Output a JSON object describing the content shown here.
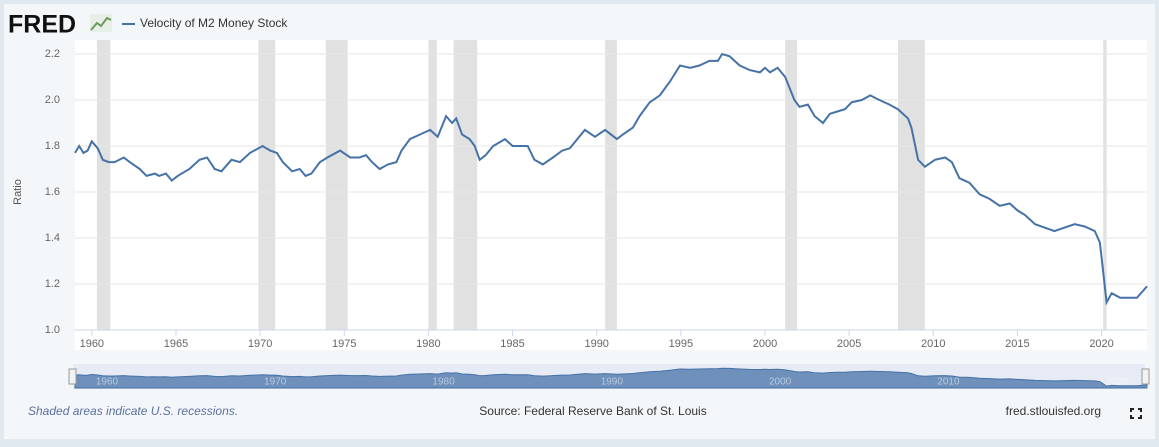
{
  "header": {
    "logo": "FRED"
  },
  "chart_data": {
    "type": "line",
    "series": [
      {
        "name": "Velocity of M2 Money Stock",
        "color": "#4572a7",
        "x": [
          1959.0,
          1959.25,
          1959.5,
          1959.75,
          1960.0,
          1960.35,
          1960.65,
          1961.0,
          1961.35,
          1961.9,
          1962.25,
          1962.85,
          1963.25,
          1963.75,
          1964.0,
          1964.4,
          1964.75,
          1965.1,
          1965.8,
          1966.4,
          1966.85,
          1967.3,
          1967.7,
          1968.3,
          1968.8,
          1969.4,
          1970.15,
          1970.6,
          1971.0,
          1971.35,
          1971.9,
          1972.35,
          1972.7,
          1973.05,
          1973.55,
          1974.0,
          1974.75,
          1975.35,
          1975.9,
          1976.3,
          1976.65,
          1977.1,
          1977.6,
          1978.1,
          1978.4,
          1978.9,
          1979.5,
          1980.1,
          1980.55,
          1981.05,
          1981.4,
          1981.65,
          1982.0,
          1982.45,
          1982.75,
          1983.05,
          1983.4,
          1983.85,
          1984.55,
          1985.0,
          1985.9,
          1986.3,
          1986.8,
          1987.4,
          1987.95,
          1988.4,
          1989.3,
          1989.9,
          1990.5,
          1991.2,
          1991.55,
          1992.15,
          1992.55,
          1993.15,
          1993.75,
          1994.35,
          1994.95,
          1995.55,
          1996.1,
          1996.7,
          1997.2,
          1997.45,
          1997.9,
          1998.5,
          1999.1,
          1999.7,
          2000.0,
          2000.3,
          2000.75,
          2001.2,
          2001.75,
          2002.05,
          2002.55,
          2002.95,
          2003.45,
          2003.85,
          2004.3,
          2004.75,
          2005.15,
          2005.75,
          2006.25,
          2006.8,
          2007.4,
          2007.9,
          2008.5,
          2008.7,
          2009.1,
          2009.5,
          2010.1,
          2010.7,
          2011.1,
          2011.55,
          2012.15,
          2012.75,
          2013.35,
          2013.95,
          2014.55,
          2015.0,
          2015.45,
          2016.05,
          2017.2,
          2018.4,
          2019.0,
          2019.6,
          2019.9,
          2020.3,
          2020.6,
          2021.1,
          2021.7,
          2022.1,
          2022.7
        ],
        "values": [
          1.77,
          1.8,
          1.77,
          1.78,
          1.82,
          1.79,
          1.74,
          1.73,
          1.73,
          1.75,
          1.73,
          1.7,
          1.67,
          1.68,
          1.67,
          1.68,
          1.65,
          1.67,
          1.7,
          1.74,
          1.75,
          1.7,
          1.69,
          1.74,
          1.73,
          1.77,
          1.8,
          1.78,
          1.77,
          1.73,
          1.69,
          1.7,
          1.67,
          1.68,
          1.73,
          1.75,
          1.78,
          1.75,
          1.75,
          1.76,
          1.73,
          1.7,
          1.72,
          1.73,
          1.78,
          1.83,
          1.85,
          1.87,
          1.84,
          1.93,
          1.9,
          1.92,
          1.85,
          1.83,
          1.8,
          1.74,
          1.76,
          1.8,
          1.83,
          1.8,
          1.8,
          1.74,
          1.72,
          1.75,
          1.78,
          1.79,
          1.87,
          1.84,
          1.87,
          1.83,
          1.85,
          1.88,
          1.93,
          1.99,
          2.02,
          2.08,
          2.15,
          2.14,
          2.15,
          2.17,
          2.17,
          2.2,
          2.19,
          2.15,
          2.13,
          2.12,
          2.14,
          2.12,
          2.14,
          2.1,
          2.0,
          1.97,
          1.98,
          1.93,
          1.9,
          1.94,
          1.95,
          1.96,
          1.99,
          2.0,
          2.02,
          2.0,
          1.98,
          1.96,
          1.92,
          1.88,
          1.74,
          1.71,
          1.74,
          1.75,
          1.73,
          1.66,
          1.64,
          1.59,
          1.57,
          1.54,
          1.55,
          1.52,
          1.5,
          1.46,
          1.43,
          1.46,
          1.45,
          1.43,
          1.38,
          1.12,
          1.16,
          1.14,
          1.14,
          1.14,
          1.19
        ]
      }
    ],
    "recessions": [
      [
        1960.3,
        1961.1
      ],
      [
        1969.9,
        1970.9
      ],
      [
        1973.9,
        1975.2
      ],
      [
        1980.0,
        1980.5
      ],
      [
        1981.5,
        1982.9
      ],
      [
        1990.5,
        1991.2
      ],
      [
        2001.2,
        2001.9
      ],
      [
        2007.9,
        2009.5
      ],
      [
        2020.1,
        2020.3
      ]
    ],
    "recession_color": "#e1e1e1",
    "xlim": [
      1959.0,
      2022.7
    ],
    "xticks": [
      1960,
      1965,
      1970,
      1975,
      1980,
      1985,
      1990,
      1995,
      2000,
      2005,
      2010,
      2015,
      2020
    ],
    "ylim": [
      1.0,
      2.2
    ],
    "yticks": [
      {
        "value": 1.0,
        "label": "1.0"
      },
      1.2,
      1.4,
      1.6,
      1.8,
      {
        "value": 2.0,
        "label": "2.0"
      },
      2.2
    ],
    "ylabel": "Ratio",
    "grid": true,
    "navigator_ticks": [
      1960,
      1970,
      1980,
      1990,
      2000,
      2010,
      2020
    ]
  },
  "footer": {
    "note": "Shaded areas indicate U.S. recessions.",
    "source": "Source: Federal Reserve Bank of St. Louis",
    "site": "fred.stlouisfed.org"
  }
}
